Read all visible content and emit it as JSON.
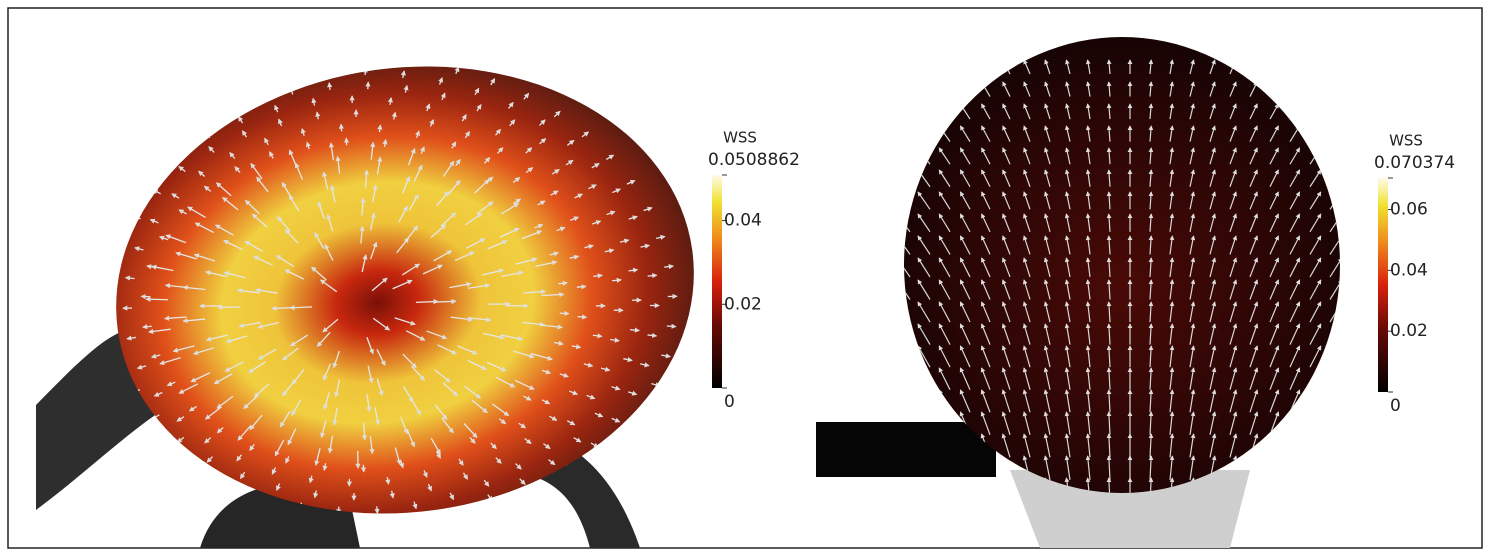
{
  "panels": [
    {
      "colorbar": {
        "title": "WSS",
        "ticks": [
          0,
          0.02,
          0.04,
          0.0508862
        ]
      }
    },
    {
      "colorbar": {
        "title": "WSS",
        "ticks": [
          0,
          0.02,
          0.04,
          0.06,
          0.070374
        ]
      }
    }
  ]
}
